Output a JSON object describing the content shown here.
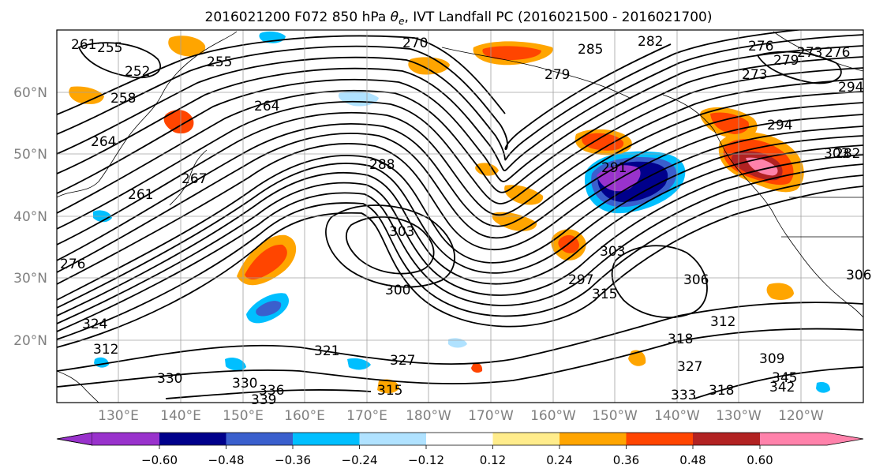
{
  "title": {
    "prefix": "2016021200 F072 850 hPa ",
    "symbol": "θ",
    "subscript": "e",
    "suffix": ", IVT Landfall PC (2016021500 - 2016021700)"
  },
  "lat_labels": [
    "60°N",
    "50°N",
    "40°N",
    "30°N",
    "20°N"
  ],
  "lon_labels": [
    "130°E",
    "140°E",
    "150°E",
    "160°E",
    "170°E",
    "180°W",
    "170°W",
    "160°W",
    "150°W",
    "140°W",
    "130°W",
    "120°W"
  ],
  "colorbar": {
    "colors": [
      "#9932cc",
      "#00008b",
      "#3a5fcd",
      "#00bfff",
      "#b0e2ff",
      "#ffffff",
      "#ffec8b",
      "#ffa500",
      "#ff4500",
      "#b22222",
      "#ff82ab"
    ],
    "ticks": [
      "−0.60",
      "−0.48",
      "−0.36",
      "−0.24",
      "−0.12",
      "0.12",
      "0.24",
      "0.36",
      "0.48",
      "0.60"
    ]
  },
  "contour_labels": [
    "261",
    "255",
    "252",
    "255",
    "258",
    "264",
    "261",
    "270",
    "264",
    "267",
    "273",
    "276",
    "279",
    "276",
    "285",
    "282",
    "276",
    "273",
    "282",
    "279",
    "291",
    "294",
    "297",
    "288",
    "303",
    "300",
    "303",
    "306",
    "312",
    "315",
    "318",
    "321",
    "324",
    "327",
    "327",
    "330",
    "330",
    "333",
    "336",
    "339",
    "342",
    "345",
    "318",
    "315",
    "312",
    "309",
    "306",
    "303",
    "294"
  ]
}
